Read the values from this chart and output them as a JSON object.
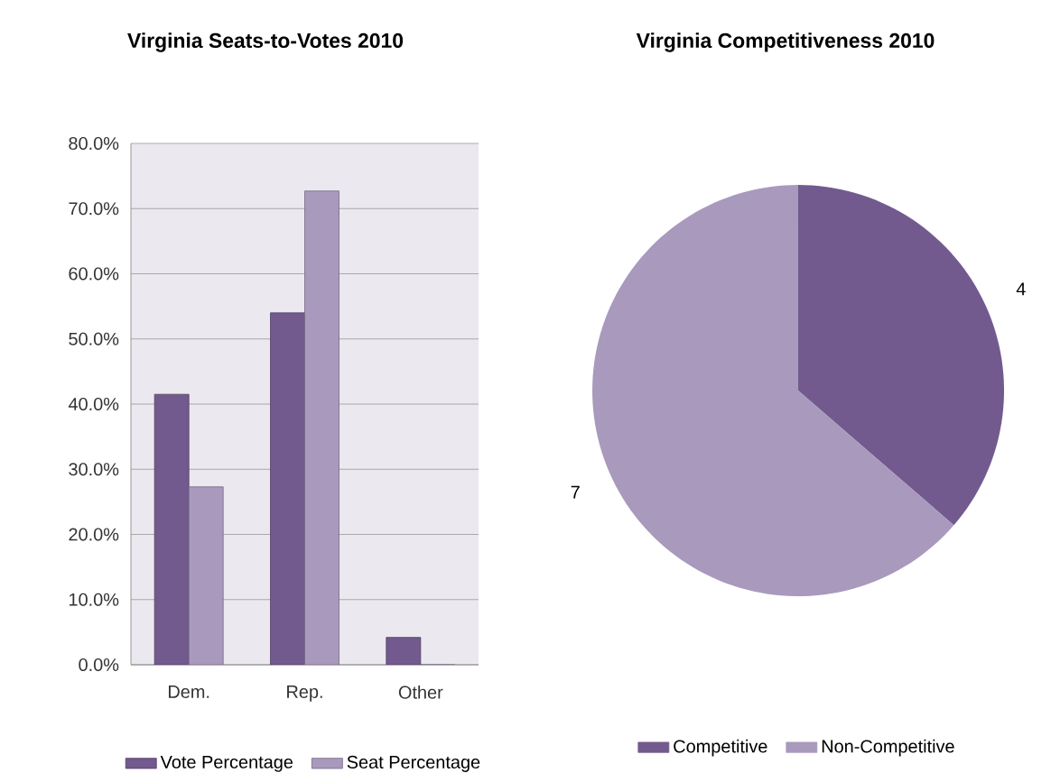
{
  "chart_data": [
    {
      "type": "bar",
      "title": "Virginia Seats-to-Votes 2010",
      "categories": [
        "Dem.",
        "Rep.",
        "Other"
      ],
      "series": [
        {
          "name": "Vote Percentage",
          "color": "#725a8f",
          "values": [
            41.5,
            54.0,
            4.2
          ]
        },
        {
          "name": "Seat Percentage",
          "color": "#a899bd",
          "values": [
            27.3,
            72.7,
            0
          ]
        }
      ],
      "ylim": [
        0,
        80
      ],
      "yticks": [
        {
          "value": 0,
          "label": "0.0%"
        },
        {
          "value": 10,
          "label": "10.0%"
        },
        {
          "value": 20,
          "label": "20.0%"
        },
        {
          "value": 30,
          "label": "30.0%"
        },
        {
          "value": 40,
          "label": "40.0%"
        },
        {
          "value": 50,
          "label": "50.0%"
        },
        {
          "value": 60,
          "label": "60.0%"
        },
        {
          "value": 70,
          "label": "70.0%"
        },
        {
          "value": 80,
          "label": "80.0%"
        }
      ],
      "grid": "y",
      "legend": "bottom"
    },
    {
      "type": "pie",
      "title": "Virginia Competitiveness 2010",
      "categories": [
        "Competitive",
        "Non-Competitive"
      ],
      "values": [
        4,
        7
      ],
      "colors": [
        "#725a8f",
        "#a899bd"
      ],
      "data_labels": true,
      "legend": "bottom"
    }
  ]
}
